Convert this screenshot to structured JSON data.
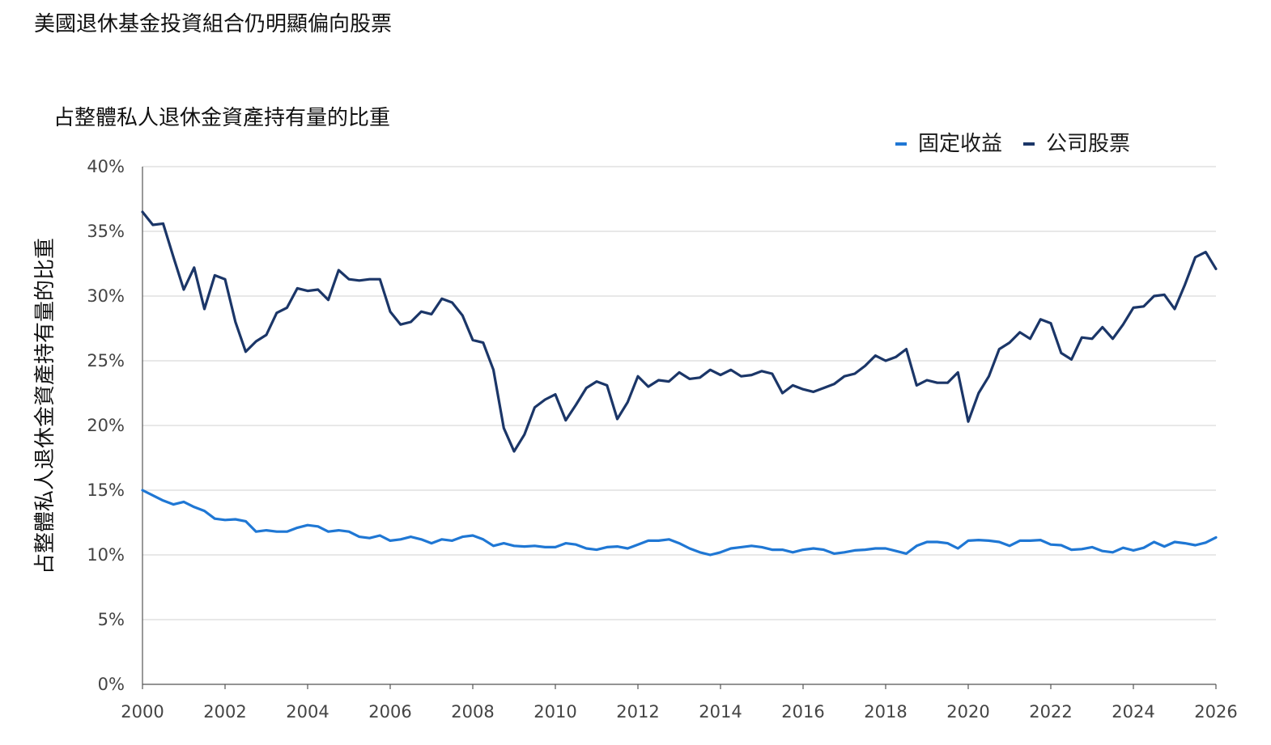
{
  "title": "美國退休基金投資組合仍明顯偏向股票",
  "chart_data": {
    "type": "line",
    "title": "美國退休基金投資組合仍明顯偏向股票",
    "subtitle": "占整體私人退休金資產持有量的比重",
    "xlabel": "",
    "ylabel": "占整體私人退休金資產持有量的比重",
    "xlim": [
      2000,
      2026
    ],
    "ylim": [
      0,
      40
    ],
    "x_ticks": [
      "2000",
      "2002",
      "2004",
      "2006",
      "2008",
      "2010",
      "2012",
      "2014",
      "2016",
      "2018",
      "2020",
      "2022",
      "2024",
      "2026"
    ],
    "y_ticks": [
      "0%",
      "5%",
      "10%",
      "15%",
      "20%",
      "25%",
      "30%",
      "35%",
      "40%"
    ],
    "grid": true,
    "legend_position": "top-right",
    "x": [
      2000.0,
      2000.25,
      2000.5,
      2000.75,
      2001.0,
      2001.25,
      2001.5,
      2001.75,
      2002.0,
      2002.25,
      2002.5,
      2002.75,
      2003.0,
      2003.25,
      2003.5,
      2003.75,
      2004.0,
      2004.25,
      2004.5,
      2004.75,
      2005.0,
      2005.25,
      2005.5,
      2005.75,
      2006.0,
      2006.25,
      2006.5,
      2006.75,
      2007.0,
      2007.25,
      2007.5,
      2007.75,
      2008.0,
      2008.25,
      2008.5,
      2008.75,
      2009.0,
      2009.25,
      2009.5,
      2009.75,
      2010.0,
      2010.25,
      2010.5,
      2010.75,
      2011.0,
      2011.25,
      2011.5,
      2011.75,
      2012.0,
      2012.25,
      2012.5,
      2012.75,
      2013.0,
      2013.25,
      2013.5,
      2013.75,
      2014.0,
      2014.25,
      2014.5,
      2014.75,
      2015.0,
      2015.25,
      2015.5,
      2015.75,
      2016.0,
      2016.25,
      2016.5,
      2016.75,
      2017.0,
      2017.25,
      2017.5,
      2017.75,
      2018.0,
      2018.25,
      2018.5,
      2018.75,
      2019.0,
      2019.25,
      2019.5,
      2019.75,
      2020.0,
      2020.25,
      2020.5,
      2020.75,
      2021.0,
      2021.25,
      2021.5,
      2021.75,
      2022.0,
      2022.25,
      2022.5,
      2022.75,
      2023.0,
      2023.25,
      2023.5,
      2023.75,
      2024.0,
      2024.25,
      2024.5,
      2024.75,
      2025.0,
      2025.25,
      2025.5,
      2025.75,
      2026.0
    ],
    "series": [
      {
        "name": "固定收益",
        "color": "#1f77d4",
        "values": [
          15.0,
          14.6,
          14.2,
          13.9,
          14.1,
          13.7,
          13.4,
          12.8,
          12.7,
          12.75,
          12.6,
          11.8,
          11.9,
          11.8,
          11.8,
          12.1,
          12.3,
          12.2,
          11.8,
          11.9,
          11.8,
          11.4,
          11.3,
          11.5,
          11.1,
          11.2,
          11.4,
          11.2,
          10.9,
          11.2,
          11.1,
          11.4,
          11.5,
          11.2,
          10.7,
          10.9,
          10.7,
          10.65,
          10.7,
          10.6,
          10.6,
          10.9,
          10.8,
          10.5,
          10.4,
          10.6,
          10.65,
          10.5,
          10.8,
          11.1,
          11.1,
          11.2,
          10.9,
          10.5,
          10.2,
          10.0,
          10.2,
          10.5,
          10.6,
          10.7,
          10.6,
          10.4,
          10.4,
          10.2,
          10.4,
          10.5,
          10.4,
          10.1,
          10.2,
          10.35,
          10.4,
          10.5,
          10.5,
          10.3,
          10.1,
          10.7,
          11.0,
          11.0,
          10.9,
          10.5,
          11.1,
          11.15,
          11.1,
          11.0,
          10.7,
          11.1,
          11.1,
          11.15,
          10.8,
          10.75,
          10.4,
          10.45,
          10.6,
          10.3,
          10.2,
          10.55,
          10.35,
          10.55,
          11.0,
          10.65,
          11.0,
          10.9,
          10.75,
          10.95,
          11.35
        ]
      },
      {
        "name": "公司股票",
        "color": "#1b3668",
        "values": [
          36.5,
          35.5,
          35.6,
          33.0,
          30.5,
          32.2,
          29.0,
          31.6,
          31.3,
          28.0,
          25.7,
          26.5,
          27.0,
          28.7,
          29.1,
          30.6,
          30.4,
          30.5,
          29.7,
          32.0,
          31.3,
          31.2,
          31.3,
          31.3,
          28.8,
          27.8,
          28.0,
          28.8,
          28.6,
          29.8,
          29.5,
          28.5,
          26.6,
          26.4,
          24.3,
          19.8,
          18.0,
          19.3,
          21.4,
          22.0,
          22.4,
          20.4,
          21.6,
          22.9,
          23.4,
          23.1,
          20.5,
          21.8,
          23.8,
          23.0,
          23.5,
          23.4,
          24.1,
          23.6,
          23.7,
          24.3,
          23.9,
          24.3,
          23.8,
          23.9,
          24.2,
          24.0,
          22.5,
          23.1,
          22.8,
          22.6,
          22.9,
          23.2,
          23.8,
          24.0,
          24.6,
          25.4,
          25.0,
          25.3,
          25.9,
          23.1,
          23.5,
          23.3,
          23.3,
          24.1,
          20.3,
          22.5,
          23.8,
          25.9,
          26.4,
          27.2,
          26.7,
          28.2,
          27.9,
          25.6,
          25.1,
          26.8,
          26.7,
          27.6,
          26.7,
          27.8,
          29.1,
          29.2,
          30.0,
          30.1,
          29.0,
          30.9,
          33.0,
          33.4,
          32.1
        ]
      }
    ]
  }
}
